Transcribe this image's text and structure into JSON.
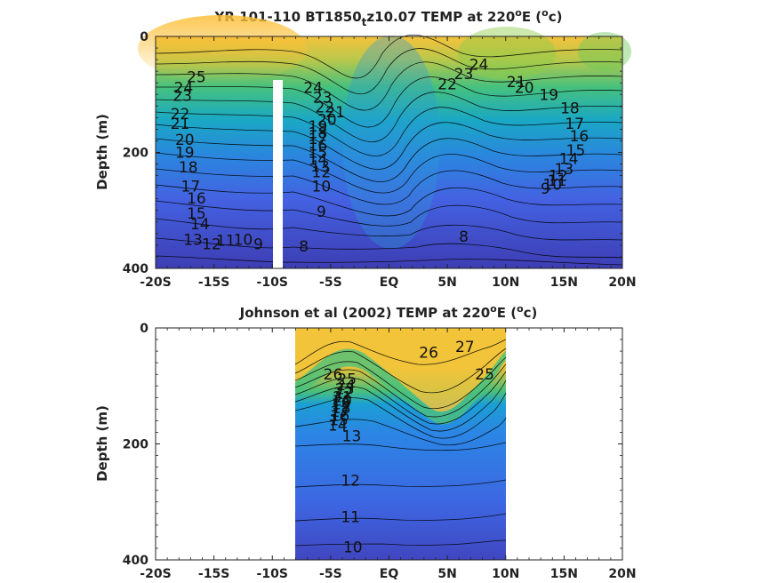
{
  "chart_data": [
    {
      "type": "heatmap",
      "subtype": "filled-contour",
      "title_parts": [
        "YR 101-110 BT1850",
        "t",
        "z10.07 TEMP at 220",
        "o",
        "E (",
        "o",
        "c)"
      ],
      "ylabel": "Depth (m)",
      "ylim": [
        400,
        0
      ],
      "yticks": [
        0,
        200,
        400
      ],
      "xlim": [
        -20,
        20
      ],
      "xticks": [
        -20,
        -15,
        -10,
        -5,
        0,
        5,
        10,
        15,
        20
      ],
      "xticklabels": [
        "-20S",
        "-15S",
        "-10S",
        "-5S",
        "EQ",
        "5N",
        "10N",
        "15N",
        "20N"
      ],
      "data_extent_lat": [
        -20,
        20
      ],
      "masked_column_lat": -10,
      "colormap": [
        "#3e3fb5",
        "#4262e0",
        "#2e88e0",
        "#1aa9c6",
        "#22bb9a",
        "#7ec84e",
        "#d9c237",
        "#fbc437"
      ],
      "contour_labels": [
        {
          "text": "25",
          "lat": -16.5,
          "depth": 70
        },
        {
          "text": "24",
          "lat": -17.6,
          "depth": 88
        },
        {
          "text": "23",
          "lat": -17.7,
          "depth": 102
        },
        {
          "text": "22",
          "lat": -17.9,
          "depth": 133
        },
        {
          "text": "21",
          "lat": -17.9,
          "depth": 150
        },
        {
          "text": "20",
          "lat": -17.5,
          "depth": 178
        },
        {
          "text": "19",
          "lat": -17.5,
          "depth": 200
        },
        {
          "text": "18",
          "lat": -17.2,
          "depth": 225
        },
        {
          "text": "17",
          "lat": -17.0,
          "depth": 258
        },
        {
          "text": "16",
          "lat": -16.5,
          "depth": 279
        },
        {
          "text": "15",
          "lat": -16.5,
          "depth": 305
        },
        {
          "text": "14",
          "lat": -16.2,
          "depth": 323
        },
        {
          "text": "13",
          "lat": -16.8,
          "depth": 350
        },
        {
          "text": "12",
          "lat": -15.2,
          "depth": 358
        },
        {
          "text": "11",
          "lat": -14.0,
          "depth": 352
        },
        {
          "text": "10",
          "lat": -12.5,
          "depth": 350
        },
        {
          "text": "9",
          "lat": -11.2,
          "depth": 358
        },
        {
          "text": "24",
          "lat": -6.5,
          "depth": 88
        },
        {
          "text": "23",
          "lat": -5.7,
          "depth": 105
        },
        {
          "text": "22",
          "lat": -5.5,
          "depth": 122
        },
        {
          "text": "21",
          "lat": -4.6,
          "depth": 130
        },
        {
          "text": "20",
          "lat": -5.3,
          "depth": 143
        },
        {
          "text": "19",
          "lat": -6.1,
          "depth": 155
        },
        {
          "text": "18",
          "lat": -6.1,
          "depth": 166
        },
        {
          "text": "17",
          "lat": -6.1,
          "depth": 176
        },
        {
          "text": "16",
          "lat": -6.1,
          "depth": 188
        },
        {
          "text": "15",
          "lat": -6.1,
          "depth": 200
        },
        {
          "text": "14",
          "lat": -6.1,
          "depth": 212
        },
        {
          "text": "13",
          "lat": -5.9,
          "depth": 224
        },
        {
          "text": "12",
          "lat": -5.8,
          "depth": 234
        },
        {
          "text": "10",
          "lat": -5.8,
          "depth": 258
        },
        {
          "text": "9",
          "lat": -5.8,
          "depth": 302
        },
        {
          "text": "8",
          "lat": -7.3,
          "depth": 362
        },
        {
          "text": "8",
          "lat": 6.4,
          "depth": 345
        },
        {
          "text": "24",
          "lat": 7.7,
          "depth": 48
        },
        {
          "text": "23",
          "lat": 6.4,
          "depth": 64
        },
        {
          "text": "22",
          "lat": 5.0,
          "depth": 82
        },
        {
          "text": "21",
          "lat": 10.9,
          "depth": 78
        },
        {
          "text": "20",
          "lat": 11.6,
          "depth": 88
        },
        {
          "text": "19",
          "lat": 13.7,
          "depth": 100
        },
        {
          "text": "18",
          "lat": 15.5,
          "depth": 123
        },
        {
          "text": "17",
          "lat": 15.9,
          "depth": 150
        },
        {
          "text": "16",
          "lat": 16.3,
          "depth": 172
        },
        {
          "text": "15",
          "lat": 16.0,
          "depth": 196
        },
        {
          "text": "14",
          "lat": 15.4,
          "depth": 211
        },
        {
          "text": "13",
          "lat": 15.0,
          "depth": 228
        },
        {
          "text": "12",
          "lat": 14.5,
          "depth": 240
        },
        {
          "text": "11",
          "lat": 14.4,
          "depth": 248
        },
        {
          "text": "10",
          "lat": 14.0,
          "depth": 255
        },
        {
          "text": "9",
          "lat": 13.4,
          "depth": 262
        }
      ]
    },
    {
      "type": "heatmap",
      "subtype": "filled-contour",
      "title_parts": [
        "Johnson et al (2002) TEMP at 220",
        "o",
        "E (",
        "o",
        "c)"
      ],
      "ylabel": "Depth (m)",
      "ylim": [
        400,
        0
      ],
      "yticks": [
        0,
        200,
        400
      ],
      "xlim": [
        -20,
        20
      ],
      "xticks": [
        -20,
        -15,
        -10,
        -5,
        0,
        5,
        10,
        15,
        20
      ],
      "xticklabels": [
        "-20S",
        "-15S",
        "-10S",
        "-5S",
        "EQ",
        "5N",
        "10N",
        "15N",
        "20N"
      ],
      "data_extent_lat": [
        -8,
        10
      ],
      "colormap": [
        "#3e3fb5",
        "#4262e0",
        "#2e88e0",
        "#1aa9c6",
        "#22bb9a",
        "#7ec84e",
        "#d9c237",
        "#fbc437"
      ],
      "contour_labels": [
        {
          "text": "26",
          "lat": -4.8,
          "depth": 80
        },
        {
          "text": "25",
          "lat": -3.6,
          "depth": 88
        },
        {
          "text": "24",
          "lat": -3.7,
          "depth": 98
        },
        {
          "text": "23",
          "lat": -3.8,
          "depth": 105
        },
        {
          "text": "22",
          "lat": -3.9,
          "depth": 112
        },
        {
          "text": "21",
          "lat": -4.0,
          "depth": 119
        },
        {
          "text": "20",
          "lat": -4.0,
          "depth": 125
        },
        {
          "text": "19",
          "lat": -4.1,
          "depth": 131
        },
        {
          "text": "18",
          "lat": -4.1,
          "depth": 138
        },
        {
          "text": "17",
          "lat": -4.2,
          "depth": 144
        },
        {
          "text": "16",
          "lat": -4.2,
          "depth": 151
        },
        {
          "text": "15",
          "lat": -4.3,
          "depth": 159
        },
        {
          "text": "14",
          "lat": -4.4,
          "depth": 168
        },
        {
          "text": "13",
          "lat": -3.2,
          "depth": 186
        },
        {
          "text": "12",
          "lat": -3.3,
          "depth": 263
        },
        {
          "text": "11",
          "lat": -3.3,
          "depth": 326
        },
        {
          "text": "10",
          "lat": -3.1,
          "depth": 378
        },
        {
          "text": "26",
          "lat": 3.4,
          "depth": 42
        },
        {
          "text": "27",
          "lat": 6.5,
          "depth": 32
        },
        {
          "text": "25",
          "lat": 8.2,
          "depth": 80
        }
      ]
    }
  ]
}
